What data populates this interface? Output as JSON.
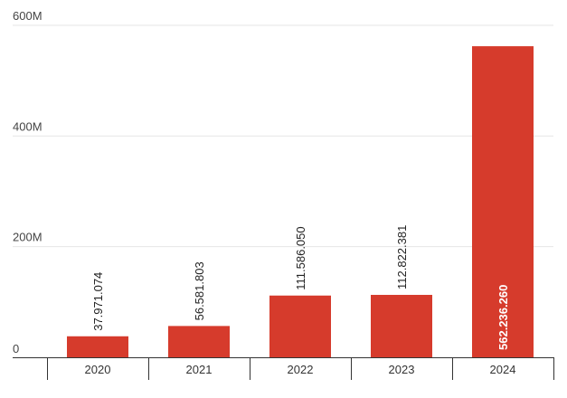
{
  "chart_data": {
    "type": "bar",
    "title": "",
    "xlabel": "",
    "ylabel": "",
    "categories": [
      "2020",
      "2021",
      "2022",
      "2023",
      "2024"
    ],
    "values": [
      37971074,
      56581803,
      111586050,
      112822381,
      562236260
    ],
    "data_labels": [
      "37.971.074",
      "56.581.803",
      "111.586.050",
      "112.822.381",
      "562.236.260"
    ],
    "ylim": [
      0,
      600000000
    ],
    "yticks": [
      0,
      200000000,
      400000000,
      600000000
    ],
    "ytick_labels": [
      "0",
      "200M",
      "400M",
      "600M"
    ],
    "grid": true,
    "legend": "none",
    "bar_color": "#d63b2c"
  }
}
